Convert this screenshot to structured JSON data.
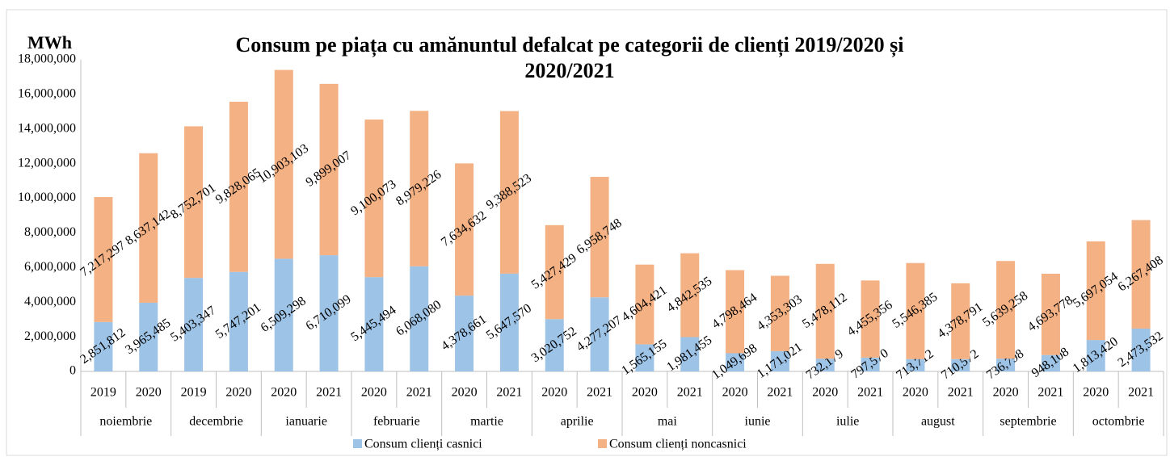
{
  "chart_data": {
    "type": "stacked_bar",
    "title": "Consum pe piața cu amănuntul defalcat pe categorii de clienți 2019/2020 și 2020/2021",
    "y_label": "MWh",
    "categories": [
      "2019",
      "2020",
      "2019",
      "2020",
      "2020",
      "2021",
      "2020",
      "2021",
      "2020",
      "2021",
      "2020",
      "2021",
      "2020",
      "2021",
      "2020",
      "2021",
      "2020",
      "2021",
      "2020",
      "2021",
      "2020",
      "2021",
      "2020",
      "2021"
    ],
    "groups": [
      "noiembrie",
      "decembrie",
      "ianuarie",
      "februarie",
      "martie",
      "aprilie",
      "mai",
      "iunie",
      "iulie",
      "august",
      "septembrie",
      "octombrie"
    ],
    "series": [
      {
        "name": "Consum clienți casnici",
        "color": "#9dc3e6",
        "values": [
          2851812,
          3965485,
          5403347,
          5747201,
          6509298,
          6710099,
          5445494,
          6068080,
          4378661,
          5647570,
          3020752,
          4277207,
          1565155,
          1981455,
          1049698,
          1171021,
          732179,
          797570,
          713712,
          710572,
          736798,
          948108,
          1813420,
          2473532
        ],
        "value_labels": [
          "2,851,812",
          "3,965,485",
          "5,403,347",
          "5,747,201",
          "6,509,298",
          "6,710,099",
          "5,445,494",
          "6,068,080",
          "4,378,661",
          "5,647,570",
          "3,020,752",
          "4,277,207",
          "1,565,155",
          "1,981,455",
          "1,049,698",
          "1,171,021",
          "732,179",
          "797,570",
          "713,712",
          "710,572",
          "736,798",
          "948,108",
          "1,813,420",
          "2,473,532"
        ]
      },
      {
        "name": "Consum clienți noncasnici",
        "color": "#f4b183",
        "values": [
          7217297,
          8637142,
          8752701,
          9828065,
          10903103,
          9899007,
          9100073,
          8979226,
          7634632,
          9388523,
          5427429,
          6958748,
          4604421,
          4842535,
          4798464,
          4353303,
          5478112,
          4455356,
          5546385,
          4378791,
          5639258,
          4693778,
          5697054,
          6267408
        ],
        "value_labels": [
          "7,217,297",
          "8,637,142",
          "8,752,701",
          "9,828,065",
          "10,903,103",
          "9,899,007",
          "9,100,073",
          "8,979,226",
          "7,634,632",
          "9,388,523",
          "5,427,429",
          "6,958,748",
          "4,604,421",
          "4,842,535",
          "4,798,464",
          "4,353,303",
          "5,478,112",
          "4,455,356",
          "5,546,385",
          "4,378,791",
          "5,639,258",
          "4,693,778",
          "5,697,054",
          "6,267,408"
        ]
      }
    ],
    "ylim": [
      0,
      18000000
    ],
    "yticks": [
      0,
      {
        "value": 2000000,
        "label": "2,000,000"
      },
      {
        "value": 4000000,
        "label": "4,000,000"
      },
      {
        "value": 6000000,
        "label": "6,000,000"
      },
      {
        "value": 8000000,
        "label": "8,000,000"
      },
      {
        "value": 10000000,
        "label": "10,000,000"
      },
      {
        "value": 12000000,
        "label": "12,000,000"
      },
      {
        "value": 14000000,
        "label": "14,000,000"
      },
      {
        "value": 16000000,
        "label": "16,000,000"
      },
      {
        "value": 18000000,
        "label": "18,000,000"
      }
    ],
    "grid": false,
    "legend": "bottom"
  }
}
